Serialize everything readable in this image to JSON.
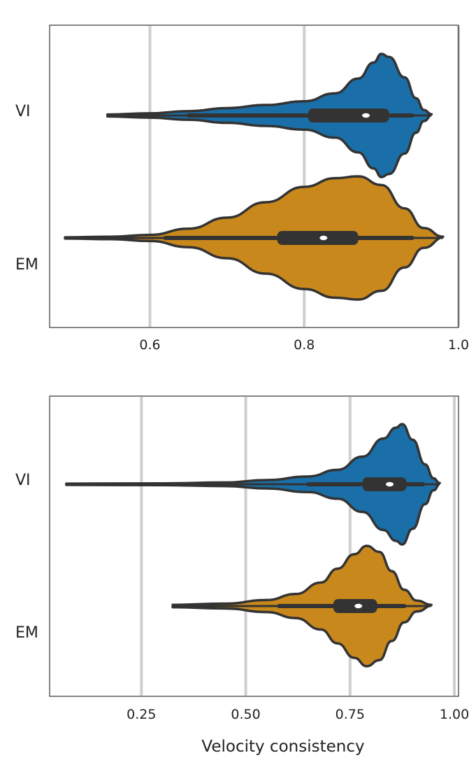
{
  "colors": {
    "VI": "#1a6fa8",
    "EM": "#c8881c",
    "outline": "#333333",
    "grid": "#cfcfcf"
  },
  "chart_data": [
    {
      "type": "violin",
      "title": "",
      "xlabel": "",
      "ylabel": "",
      "xlim": [
        0.47,
        1.0
      ],
      "grid": true,
      "categories": [
        "VI",
        "EM"
      ],
      "xticks": [
        0.6,
        0.8,
        1.0
      ],
      "xtick_labels": [
        "0.6",
        "0.8",
        "1.0"
      ],
      "series": [
        {
          "name": "VI",
          "min": 0.545,
          "q1": 0.805,
          "median": 0.88,
          "q3": 0.91,
          "whisker_low": 0.65,
          "whisker_high": 0.94,
          "max": 0.965,
          "density": [
            [
              0.545,
              0.015
            ],
            [
              0.6,
              0.035
            ],
            [
              0.65,
              0.07
            ],
            [
              0.7,
              0.12
            ],
            [
              0.75,
              0.17
            ],
            [
              0.8,
              0.23
            ],
            [
              0.84,
              0.36
            ],
            [
              0.87,
              0.6
            ],
            [
              0.89,
              0.86
            ],
            [
              0.9,
              1.0
            ],
            [
              0.91,
              0.95
            ],
            [
              0.93,
              0.62
            ],
            [
              0.945,
              0.28
            ],
            [
              0.955,
              0.09
            ],
            [
              0.965,
              0.02
            ]
          ]
        },
        {
          "name": "EM",
          "min": 0.49,
          "q1": 0.765,
          "median": 0.825,
          "q3": 0.87,
          "whisker_low": 0.62,
          "whisker_high": 0.94,
          "max": 0.98,
          "density": [
            [
              0.49,
              0.01
            ],
            [
              0.55,
              0.02
            ],
            [
              0.6,
              0.05
            ],
            [
              0.65,
              0.15
            ],
            [
              0.7,
              0.33
            ],
            [
              0.75,
              0.58
            ],
            [
              0.8,
              0.83
            ],
            [
              0.84,
              0.97
            ],
            [
              0.87,
              1.0
            ],
            [
              0.9,
              0.86
            ],
            [
              0.93,
              0.48
            ],
            [
              0.955,
              0.16
            ],
            [
              0.98,
              0.02
            ]
          ]
        }
      ]
    },
    {
      "type": "violin",
      "title": "",
      "xlabel": "Velocity consistency",
      "ylabel": "",
      "xlim": [
        0.03,
        1.01
      ],
      "grid": true,
      "categories": [
        "VI",
        "EM"
      ],
      "xticks": [
        0.25,
        0.5,
        0.75,
        1.0
      ],
      "xtick_labels": [
        "0.25",
        "0.50",
        "0.75",
        "1.00"
      ],
      "series": [
        {
          "name": "VI",
          "min": 0.07,
          "q1": 0.78,
          "median": 0.845,
          "q3": 0.885,
          "whisker_low": 0.65,
          "whisker_high": 0.925,
          "max": 0.965,
          "density": [
            [
              0.07,
              0.01
            ],
            [
              0.3,
              0.015
            ],
            [
              0.45,
              0.03
            ],
            [
              0.55,
              0.07
            ],
            [
              0.65,
              0.13
            ],
            [
              0.72,
              0.24
            ],
            [
              0.78,
              0.46
            ],
            [
              0.83,
              0.76
            ],
            [
              0.86,
              0.94
            ],
            [
              0.875,
              1.0
            ],
            [
              0.9,
              0.74
            ],
            [
              0.93,
              0.33
            ],
            [
              0.95,
              0.1
            ],
            [
              0.965,
              0.02
            ]
          ]
        },
        {
          "name": "EM",
          "min": 0.325,
          "q1": 0.71,
          "median": 0.77,
          "q3": 0.815,
          "whisker_low": 0.58,
          "whisker_high": 0.88,
          "max": 0.945,
          "density": [
            [
              0.325,
              0.02
            ],
            [
              0.45,
              0.04
            ],
            [
              0.55,
              0.1
            ],
            [
              0.62,
              0.2
            ],
            [
              0.68,
              0.39
            ],
            [
              0.72,
              0.62
            ],
            [
              0.76,
              0.86
            ],
            [
              0.79,
              1.0
            ],
            [
              0.82,
              0.9
            ],
            [
              0.85,
              0.58
            ],
            [
              0.88,
              0.27
            ],
            [
              0.91,
              0.09
            ],
            [
              0.945,
              0.02
            ]
          ]
        }
      ]
    }
  ]
}
